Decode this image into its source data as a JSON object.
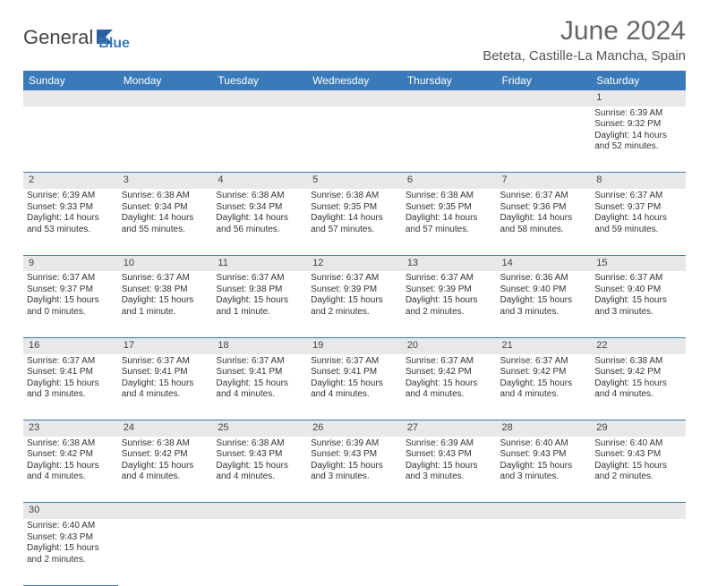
{
  "brand": {
    "part1": "General",
    "part2": "Blue"
  },
  "title": "June 2024",
  "location": "Beteta, Castille-La Mancha, Spain",
  "colors": {
    "header_bg": "#3a7ab8",
    "daynum_bg": "#e8e8e8",
    "border": "#3a7ab8"
  },
  "weekdays": [
    "Sunday",
    "Monday",
    "Tuesday",
    "Wednesday",
    "Thursday",
    "Friday",
    "Saturday"
  ],
  "weeks": [
    [
      null,
      null,
      null,
      null,
      null,
      null,
      {
        "d": "1",
        "sr": "Sunrise: 6:39 AM",
        "ss": "Sunset: 9:32 PM",
        "dl1": "Daylight: 14 hours",
        "dl2": "and 52 minutes."
      }
    ],
    [
      {
        "d": "2",
        "sr": "Sunrise: 6:39 AM",
        "ss": "Sunset: 9:33 PM",
        "dl1": "Daylight: 14 hours",
        "dl2": "and 53 minutes."
      },
      {
        "d": "3",
        "sr": "Sunrise: 6:38 AM",
        "ss": "Sunset: 9:34 PM",
        "dl1": "Daylight: 14 hours",
        "dl2": "and 55 minutes."
      },
      {
        "d": "4",
        "sr": "Sunrise: 6:38 AM",
        "ss": "Sunset: 9:34 PM",
        "dl1": "Daylight: 14 hours",
        "dl2": "and 56 minutes."
      },
      {
        "d": "5",
        "sr": "Sunrise: 6:38 AM",
        "ss": "Sunset: 9:35 PM",
        "dl1": "Daylight: 14 hours",
        "dl2": "and 57 minutes."
      },
      {
        "d": "6",
        "sr": "Sunrise: 6:38 AM",
        "ss": "Sunset: 9:35 PM",
        "dl1": "Daylight: 14 hours",
        "dl2": "and 57 minutes."
      },
      {
        "d": "7",
        "sr": "Sunrise: 6:37 AM",
        "ss": "Sunset: 9:36 PM",
        "dl1": "Daylight: 14 hours",
        "dl2": "and 58 minutes."
      },
      {
        "d": "8",
        "sr": "Sunrise: 6:37 AM",
        "ss": "Sunset: 9:37 PM",
        "dl1": "Daylight: 14 hours",
        "dl2": "and 59 minutes."
      }
    ],
    [
      {
        "d": "9",
        "sr": "Sunrise: 6:37 AM",
        "ss": "Sunset: 9:37 PM",
        "dl1": "Daylight: 15 hours",
        "dl2": "and 0 minutes."
      },
      {
        "d": "10",
        "sr": "Sunrise: 6:37 AM",
        "ss": "Sunset: 9:38 PM",
        "dl1": "Daylight: 15 hours",
        "dl2": "and 1 minute."
      },
      {
        "d": "11",
        "sr": "Sunrise: 6:37 AM",
        "ss": "Sunset: 9:38 PM",
        "dl1": "Daylight: 15 hours",
        "dl2": "and 1 minute."
      },
      {
        "d": "12",
        "sr": "Sunrise: 6:37 AM",
        "ss": "Sunset: 9:39 PM",
        "dl1": "Daylight: 15 hours",
        "dl2": "and 2 minutes."
      },
      {
        "d": "13",
        "sr": "Sunrise: 6:37 AM",
        "ss": "Sunset: 9:39 PM",
        "dl1": "Daylight: 15 hours",
        "dl2": "and 2 minutes."
      },
      {
        "d": "14",
        "sr": "Sunrise: 6:36 AM",
        "ss": "Sunset: 9:40 PM",
        "dl1": "Daylight: 15 hours",
        "dl2": "and 3 minutes."
      },
      {
        "d": "15",
        "sr": "Sunrise: 6:37 AM",
        "ss": "Sunset: 9:40 PM",
        "dl1": "Daylight: 15 hours",
        "dl2": "and 3 minutes."
      }
    ],
    [
      {
        "d": "16",
        "sr": "Sunrise: 6:37 AM",
        "ss": "Sunset: 9:41 PM",
        "dl1": "Daylight: 15 hours",
        "dl2": "and 3 minutes."
      },
      {
        "d": "17",
        "sr": "Sunrise: 6:37 AM",
        "ss": "Sunset: 9:41 PM",
        "dl1": "Daylight: 15 hours",
        "dl2": "and 4 minutes."
      },
      {
        "d": "18",
        "sr": "Sunrise: 6:37 AM",
        "ss": "Sunset: 9:41 PM",
        "dl1": "Daylight: 15 hours",
        "dl2": "and 4 minutes."
      },
      {
        "d": "19",
        "sr": "Sunrise: 6:37 AM",
        "ss": "Sunset: 9:41 PM",
        "dl1": "Daylight: 15 hours",
        "dl2": "and 4 minutes."
      },
      {
        "d": "20",
        "sr": "Sunrise: 6:37 AM",
        "ss": "Sunset: 9:42 PM",
        "dl1": "Daylight: 15 hours",
        "dl2": "and 4 minutes."
      },
      {
        "d": "21",
        "sr": "Sunrise: 6:37 AM",
        "ss": "Sunset: 9:42 PM",
        "dl1": "Daylight: 15 hours",
        "dl2": "and 4 minutes."
      },
      {
        "d": "22",
        "sr": "Sunrise: 6:38 AM",
        "ss": "Sunset: 9:42 PM",
        "dl1": "Daylight: 15 hours",
        "dl2": "and 4 minutes."
      }
    ],
    [
      {
        "d": "23",
        "sr": "Sunrise: 6:38 AM",
        "ss": "Sunset: 9:42 PM",
        "dl1": "Daylight: 15 hours",
        "dl2": "and 4 minutes."
      },
      {
        "d": "24",
        "sr": "Sunrise: 6:38 AM",
        "ss": "Sunset: 9:42 PM",
        "dl1": "Daylight: 15 hours",
        "dl2": "and 4 minutes."
      },
      {
        "d": "25",
        "sr": "Sunrise: 6:38 AM",
        "ss": "Sunset: 9:43 PM",
        "dl1": "Daylight: 15 hours",
        "dl2": "and 4 minutes."
      },
      {
        "d": "26",
        "sr": "Sunrise: 6:39 AM",
        "ss": "Sunset: 9:43 PM",
        "dl1": "Daylight: 15 hours",
        "dl2": "and 3 minutes."
      },
      {
        "d": "27",
        "sr": "Sunrise: 6:39 AM",
        "ss": "Sunset: 9:43 PM",
        "dl1": "Daylight: 15 hours",
        "dl2": "and 3 minutes."
      },
      {
        "d": "28",
        "sr": "Sunrise: 6:40 AM",
        "ss": "Sunset: 9:43 PM",
        "dl1": "Daylight: 15 hours",
        "dl2": "and 3 minutes."
      },
      {
        "d": "29",
        "sr": "Sunrise: 6:40 AM",
        "ss": "Sunset: 9:43 PM",
        "dl1": "Daylight: 15 hours",
        "dl2": "and 2 minutes."
      }
    ],
    [
      {
        "d": "30",
        "sr": "Sunrise: 6:40 AM",
        "ss": "Sunset: 9:43 PM",
        "dl1": "Daylight: 15 hours",
        "dl2": "and 2 minutes."
      },
      null,
      null,
      null,
      null,
      null,
      null
    ]
  ]
}
